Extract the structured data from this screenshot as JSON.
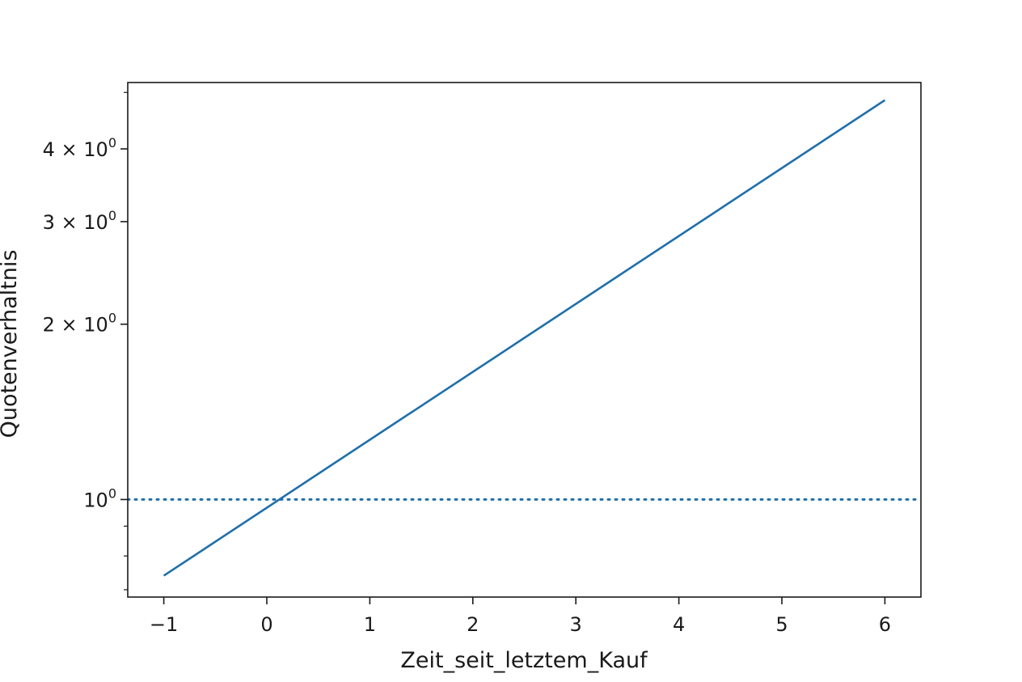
{
  "chart_data": {
    "type": "line",
    "title": "",
    "xlabel": "Zeit_seit_letztem_Kauf",
    "ylabel": "Quotenverhaltnis",
    "xlim": [
      -1.35,
      6.35
    ],
    "ylim": [
      0.68,
      5.2
    ],
    "yscale": "log",
    "grid": false,
    "x_ticks": [
      {
        "value": -1,
        "label": "−1"
      },
      {
        "value": 0,
        "label": "0"
      },
      {
        "value": 1,
        "label": "1"
      },
      {
        "value": 2,
        "label": "2"
      },
      {
        "value": 3,
        "label": "3"
      },
      {
        "value": 4,
        "label": "4"
      },
      {
        "value": 5,
        "label": "5"
      },
      {
        "value": 6,
        "label": "6"
      }
    ],
    "y_ticks": [
      {
        "value": 1,
        "coef": "",
        "exp": "0"
      },
      {
        "value": 2,
        "coef": "2 × ",
        "exp": "0"
      },
      {
        "value": 3,
        "coef": "3 × ",
        "exp": "0"
      },
      {
        "value": 4,
        "coef": "4 × ",
        "exp": "0"
      }
    ],
    "y_minor_ticks": [
      0.7,
      0.8,
      0.9,
      5
    ],
    "series": [
      {
        "style": "solid",
        "color": "#1f6faa",
        "x": [
          -1,
          6
        ],
        "y": [
          0.74,
          4.85
        ]
      }
    ],
    "reference_line": {
      "style": "dotted",
      "color": "#1f6faa",
      "y": 1.0
    }
  }
}
